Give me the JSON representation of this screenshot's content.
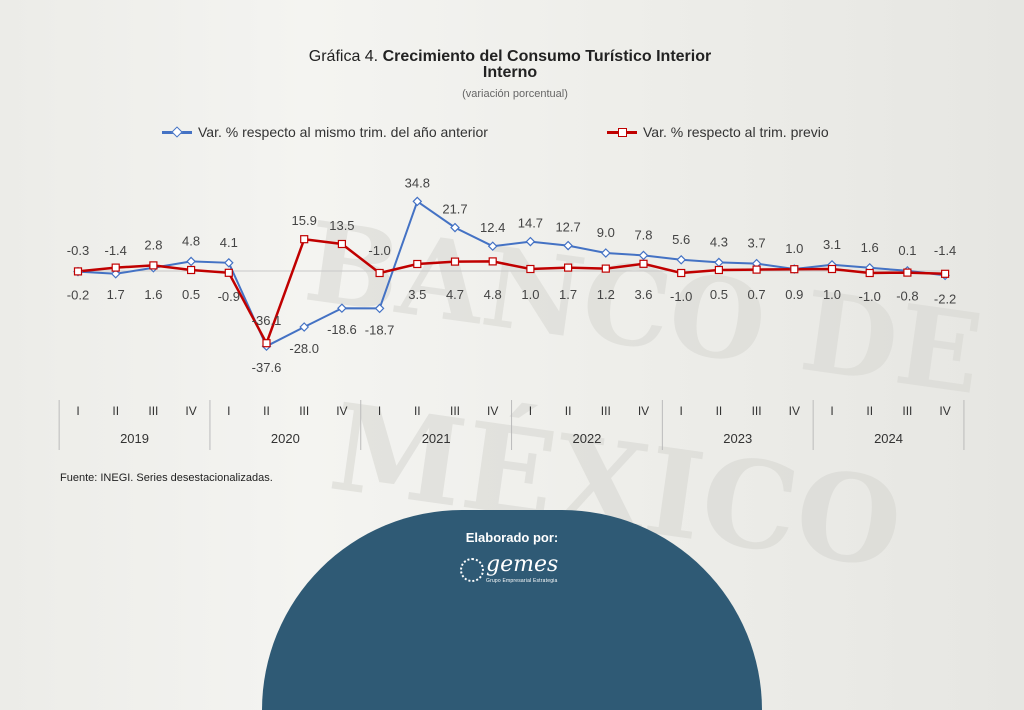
{
  "title": {
    "prefix": "Gráfica 4.",
    "main": "Crecimiento del Consumo Turístico Interior",
    "line2": "Interno",
    "subtitle": "(variación porcentual)"
  },
  "source": "Fuente: INEGI. Series desestacionalizadas.",
  "footer": {
    "label": "Elaborado por:",
    "logo_word": "gemes",
    "logo_sub": "Grupo Empresarial Estrategia"
  },
  "watermark": {
    "line1": "BANCO DE",
    "line2": "MÉXICO"
  },
  "colors": {
    "annual": "#4472c4",
    "quarterly": "#c00000",
    "footer": "#2f5a75"
  },
  "chart_data": {
    "type": "line",
    "title": "Crecimiento del Consumo Turístico Interior Interno",
    "subtitle": "(variación porcentual)",
    "quarters": [
      "I",
      "II",
      "III",
      "IV",
      "I",
      "II",
      "III",
      "IV",
      "I",
      "II",
      "III",
      "IV",
      "I",
      "II",
      "III",
      "IV",
      "I",
      "II",
      "III",
      "IV",
      "I",
      "II",
      "III",
      "IV"
    ],
    "years": [
      "2019",
      "2020",
      "2021",
      "2022",
      "2023",
      "2024"
    ],
    "legend_position": "top",
    "grid": false,
    "series": [
      {
        "name": "Var. % respecto al mismo trim. del año anterior",
        "marker": "diamond",
        "values": [
          -0.3,
          -1.4,
          1.6,
          4.8,
          4.1,
          -37.6,
          -28.0,
          -18.6,
          -18.7,
          34.8,
          21.7,
          12.4,
          14.7,
          12.7,
          9.0,
          7.8,
          5.6,
          4.3,
          3.7,
          1.0,
          3.1,
          1.6,
          0.1,
          -2.2
        ],
        "labels": [
          "-0.3",
          "-1.4",
          "1.6",
          "4.8",
          "4.1",
          "-37.6",
          "-28.0",
          "-18.6",
          "-18.7",
          "34.8",
          "21.7",
          "12.4",
          "14.7",
          "12.7",
          "9.0",
          "7.8",
          "5.6",
          "4.3",
          "3.7",
          "1.0",
          "3.1",
          "1.6",
          "0.1",
          "-2.2"
        ]
      },
      {
        "name": "Var. % respecto al trim. previo",
        "marker": "square",
        "values": [
          -0.2,
          1.7,
          2.8,
          0.5,
          -0.9,
          -36.1,
          15.9,
          13.5,
          -1.0,
          3.5,
          4.7,
          4.8,
          1.0,
          1.7,
          1.2,
          3.6,
          -1.0,
          0.5,
          0.7,
          0.9,
          1.0,
          -1.0,
          -0.8,
          -1.4
        ],
        "labels": [
          "-0.2",
          "1.7",
          "2.8",
          "0.5",
          "-0.9",
          "-36.1",
          "15.9",
          "13.5",
          "-1.0",
          "3.5",
          "4.7",
          "4.8",
          "1.0",
          "1.7",
          "1.2",
          "3.6",
          "-1.0",
          "0.5",
          "0.7",
          "0.9",
          "1.0",
          "-1.0",
          "-0.8",
          "-1.4"
        ]
      }
    ]
  }
}
